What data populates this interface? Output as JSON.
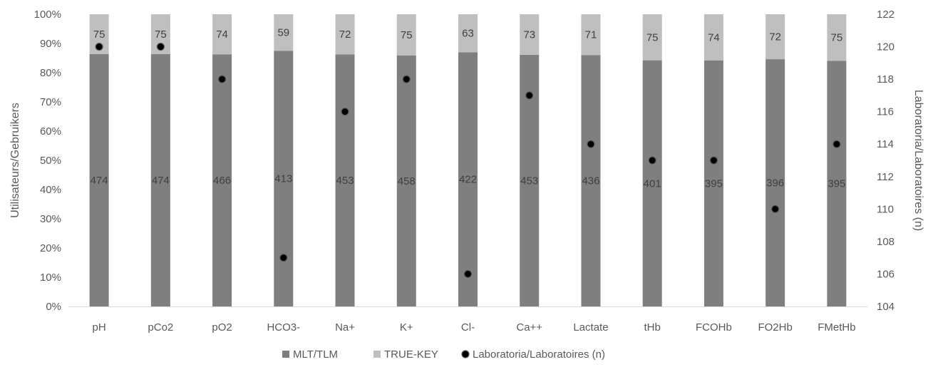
{
  "chart_data": {
    "type": "bar",
    "stacked": "percent",
    "categories": [
      "pH",
      "pCo2",
      "pO2",
      "HCO3-",
      "Na+",
      "K+",
      "Cl-",
      "Ca++",
      "Lactate",
      "tHb",
      "FCOHb",
      "FO2Hb",
      "FMetHb"
    ],
    "series": [
      {
        "name": "MLT/TLM",
        "kind": "bar",
        "axis": "left",
        "color": "#7f7f7f",
        "values": [
          474,
          474,
          466,
          413,
          453,
          458,
          422,
          453,
          436,
          401,
          395,
          396,
          395
        ]
      },
      {
        "name": "TRUE-KEY",
        "kind": "bar",
        "axis": "left",
        "color": "#bfbfbf",
        "values": [
          75,
          75,
          74,
          59,
          72,
          75,
          63,
          73,
          71,
          75,
          74,
          72,
          75
        ]
      },
      {
        "name": "Laboratoria/Laboratoires (n)",
        "kind": "scatter",
        "axis": "right",
        "color": "#000000",
        "values": [
          120,
          120,
          118,
          107,
          116,
          118,
          106,
          117,
          114,
          113,
          113,
          110,
          114
        ]
      }
    ],
    "ylabel": "Utilisateurs/Gebruikers",
    "y2label": "Laboratoria/Laboratoires (n)",
    "ylim": [
      0,
      1
    ],
    "y2lim": [
      104,
      122
    ],
    "yticks": [
      "0%",
      "10%",
      "20%",
      "30%",
      "40%",
      "50%",
      "60%",
      "70%",
      "80%",
      "90%",
      "100%"
    ],
    "y2ticks": [
      "104",
      "106",
      "108",
      "110",
      "112",
      "114",
      "116",
      "118",
      "120",
      "122"
    ],
    "legend": "bottom",
    "grid": false
  }
}
